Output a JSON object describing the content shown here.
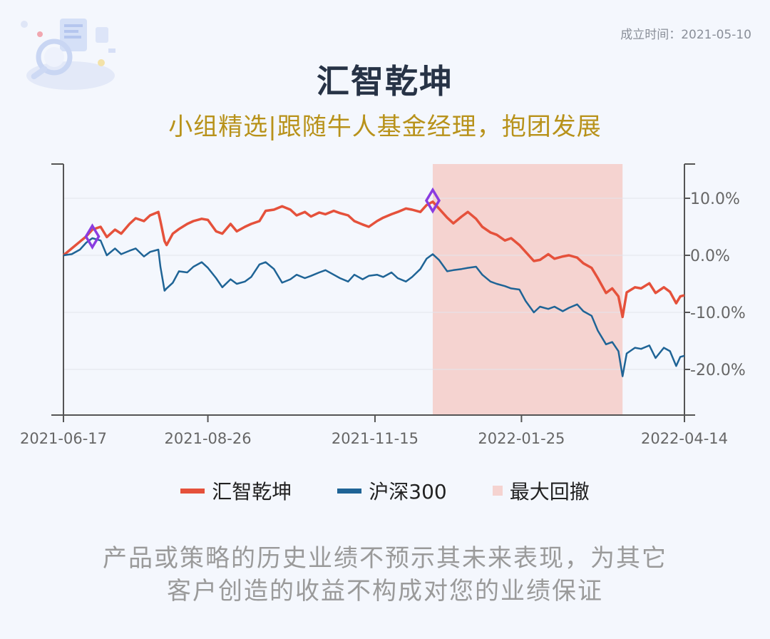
{
  "header": {
    "founded": "成立时间：2021-05-10",
    "title": "汇智乾坤",
    "subtitle": "小组精选|跟随牛人基金经理，抱团发展"
  },
  "colors": {
    "fund": "#e5513b",
    "index": "#1f6496",
    "drawdown": "#f5d3d0",
    "marker": "#8a3ce0",
    "axis": "#555555"
  },
  "chart_data": {
    "type": "line",
    "x_ticks": [
      "2021-06-17",
      "2021-08-26",
      "2021-11-15",
      "2022-01-25",
      "2022-04-14"
    ],
    "y_right_ticks": [
      "10.0%",
      "0.0%",
      "-10.0%",
      "-20.0%"
    ],
    "ylim": [
      -28,
      16
    ],
    "x_start": "2021-06-17",
    "x_end": "2022-04-14",
    "grid": true,
    "legend_position": "bottom",
    "series": [
      {
        "name": "汇智乾坤",
        "color": "#e5513b",
        "points": [
          [
            "2021-06-17",
            0.0
          ],
          [
            "2021-06-21",
            1.2
          ],
          [
            "2021-06-25",
            2.4
          ],
          [
            "2021-06-28",
            3.3
          ],
          [
            "2021-07-01",
            4.5
          ],
          [
            "2021-07-05",
            5.0
          ],
          [
            "2021-07-08",
            3.2
          ],
          [
            "2021-07-12",
            4.5
          ],
          [
            "2021-07-15",
            3.8
          ],
          [
            "2021-07-19",
            5.5
          ],
          [
            "2021-07-22",
            6.5
          ],
          [
            "2021-07-26",
            6.0
          ],
          [
            "2021-07-29",
            7.0
          ],
          [
            "2021-08-02",
            7.6
          ],
          [
            "2021-08-03",
            6.0
          ],
          [
            "2021-08-05",
            2.5
          ],
          [
            "2021-08-06",
            1.8
          ],
          [
            "2021-08-09",
            3.8
          ],
          [
            "2021-08-12",
            4.6
          ],
          [
            "2021-08-16",
            5.5
          ],
          [
            "2021-08-19",
            6.0
          ],
          [
            "2021-08-23",
            6.4
          ],
          [
            "2021-08-26",
            6.2
          ],
          [
            "2021-08-30",
            4.2
          ],
          [
            "2021-09-02",
            3.8
          ],
          [
            "2021-09-06",
            5.5
          ],
          [
            "2021-09-09",
            4.2
          ],
          [
            "2021-09-13",
            5.0
          ],
          [
            "2021-09-16",
            5.5
          ],
          [
            "2021-09-20",
            6.0
          ],
          [
            "2021-09-23",
            7.8
          ],
          [
            "2021-09-27",
            8.0
          ],
          [
            "2021-10-01",
            8.6
          ],
          [
            "2021-10-05",
            8.0
          ],
          [
            "2021-10-08",
            7.0
          ],
          [
            "2021-10-12",
            7.6
          ],
          [
            "2021-10-15",
            6.8
          ],
          [
            "2021-10-19",
            7.5
          ],
          [
            "2021-10-22",
            7.2
          ],
          [
            "2021-10-26",
            7.8
          ],
          [
            "2021-10-29",
            7.4
          ],
          [
            "2021-11-02",
            7.0
          ],
          [
            "2021-11-05",
            6.0
          ],
          [
            "2021-11-09",
            5.4
          ],
          [
            "2021-11-12",
            5.0
          ],
          [
            "2021-11-16",
            6.0
          ],
          [
            "2021-11-19",
            6.6
          ],
          [
            "2021-11-23",
            7.2
          ],
          [
            "2021-11-26",
            7.6
          ],
          [
            "2021-11-30",
            8.2
          ],
          [
            "2021-12-03",
            8.0
          ],
          [
            "2021-12-07",
            7.6
          ],
          [
            "2021-12-10",
            8.8
          ],
          [
            "2021-12-13",
            9.4
          ],
          [
            "2021-12-16",
            8.2
          ],
          [
            "2021-12-20",
            6.6
          ],
          [
            "2021-12-23",
            5.6
          ],
          [
            "2021-12-27",
            6.8
          ],
          [
            "2021-12-30",
            7.6
          ],
          [
            "2022-01-03",
            6.4
          ],
          [
            "2022-01-06",
            5.0
          ],
          [
            "2022-01-10",
            4.0
          ],
          [
            "2022-01-13",
            3.6
          ],
          [
            "2022-01-17",
            2.6
          ],
          [
            "2022-01-20",
            3.0
          ],
          [
            "2022-01-24",
            1.8
          ],
          [
            "2022-01-27",
            0.6
          ],
          [
            "2022-01-31",
            -1.0
          ],
          [
            "2022-02-03",
            -0.8
          ],
          [
            "2022-02-07",
            0.2
          ],
          [
            "2022-02-10",
            -0.6
          ],
          [
            "2022-02-14",
            -0.2
          ],
          [
            "2022-02-17",
            0.0
          ],
          [
            "2022-02-21",
            -0.4
          ],
          [
            "2022-02-24",
            -1.4
          ],
          [
            "2022-02-28",
            -2.2
          ],
          [
            "2022-03-03",
            -4.0
          ],
          [
            "2022-03-07",
            -6.6
          ],
          [
            "2022-03-10",
            -5.8
          ],
          [
            "2022-03-13",
            -7.2
          ],
          [
            "2022-03-15",
            -10.8
          ],
          [
            "2022-03-17",
            -6.5
          ],
          [
            "2022-03-21",
            -5.6
          ],
          [
            "2022-03-24",
            -5.8
          ],
          [
            "2022-03-28",
            -4.9
          ],
          [
            "2022-03-31",
            -6.6
          ],
          [
            "2022-04-04",
            -5.6
          ],
          [
            "2022-04-07",
            -6.4
          ],
          [
            "2022-04-10",
            -8.4
          ],
          [
            "2022-04-12",
            -7.2
          ],
          [
            "2022-04-14",
            -7.0
          ]
        ]
      },
      {
        "name": "沪深300",
        "color": "#1f6496",
        "points": [
          [
            "2021-06-17",
            0.0
          ],
          [
            "2021-06-21",
            0.2
          ],
          [
            "2021-06-25",
            1.0
          ],
          [
            "2021-06-28",
            2.2
          ],
          [
            "2021-07-01",
            3.0
          ],
          [
            "2021-07-05",
            2.6
          ],
          [
            "2021-07-08",
            0.0
          ],
          [
            "2021-07-12",
            1.2
          ],
          [
            "2021-07-15",
            0.2
          ],
          [
            "2021-07-19",
            0.8
          ],
          [
            "2021-07-22",
            1.2
          ],
          [
            "2021-07-26",
            -0.2
          ],
          [
            "2021-07-29",
            0.6
          ],
          [
            "2021-08-02",
            1.0
          ],
          [
            "2021-08-03",
            -2.0
          ],
          [
            "2021-08-05",
            -6.2
          ],
          [
            "2021-08-06",
            -5.8
          ],
          [
            "2021-08-09",
            -4.8
          ],
          [
            "2021-08-12",
            -2.8
          ],
          [
            "2021-08-16",
            -3.0
          ],
          [
            "2021-08-19",
            -2.0
          ],
          [
            "2021-08-23",
            -1.2
          ],
          [
            "2021-08-26",
            -2.2
          ],
          [
            "2021-08-30",
            -4.0
          ],
          [
            "2021-09-02",
            -5.6
          ],
          [
            "2021-09-06",
            -4.2
          ],
          [
            "2021-09-09",
            -5.0
          ],
          [
            "2021-09-13",
            -4.6
          ],
          [
            "2021-09-16",
            -3.8
          ],
          [
            "2021-09-20",
            -1.6
          ],
          [
            "2021-09-23",
            -1.2
          ],
          [
            "2021-09-27",
            -2.4
          ],
          [
            "2021-10-01",
            -4.8
          ],
          [
            "2021-10-05",
            -4.2
          ],
          [
            "2021-10-08",
            -3.4
          ],
          [
            "2021-10-12",
            -4.0
          ],
          [
            "2021-10-15",
            -3.6
          ],
          [
            "2021-10-19",
            -3.0
          ],
          [
            "2021-10-22",
            -2.6
          ],
          [
            "2021-10-26",
            -3.4
          ],
          [
            "2021-10-29",
            -4.0
          ],
          [
            "2021-11-02",
            -4.6
          ],
          [
            "2021-11-05",
            -3.4
          ],
          [
            "2021-11-09",
            -4.2
          ],
          [
            "2021-11-12",
            -3.6
          ],
          [
            "2021-11-16",
            -3.4
          ],
          [
            "2021-11-19",
            -3.8
          ],
          [
            "2021-11-23",
            -3.0
          ],
          [
            "2021-11-26",
            -4.0
          ],
          [
            "2021-11-30",
            -4.6
          ],
          [
            "2021-12-03",
            -3.8
          ],
          [
            "2021-12-07",
            -2.4
          ],
          [
            "2021-12-10",
            -0.6
          ],
          [
            "2021-12-13",
            0.2
          ],
          [
            "2021-12-16",
            -0.8
          ],
          [
            "2021-12-20",
            -2.8
          ],
          [
            "2021-12-23",
            -2.6
          ],
          [
            "2021-12-27",
            -2.4
          ],
          [
            "2021-12-30",
            -2.2
          ],
          [
            "2022-01-03",
            -2.0
          ],
          [
            "2022-01-06",
            -3.4
          ],
          [
            "2022-01-10",
            -4.6
          ],
          [
            "2022-01-13",
            -5.0
          ],
          [
            "2022-01-17",
            -5.4
          ],
          [
            "2022-01-20",
            -5.8
          ],
          [
            "2022-01-24",
            -6.0
          ],
          [
            "2022-01-27",
            -8.0
          ],
          [
            "2022-01-31",
            -10.0
          ],
          [
            "2022-02-03",
            -9.0
          ],
          [
            "2022-02-07",
            -9.4
          ],
          [
            "2022-02-10",
            -9.0
          ],
          [
            "2022-02-14",
            -9.8
          ],
          [
            "2022-02-17",
            -9.2
          ],
          [
            "2022-02-21",
            -8.6
          ],
          [
            "2022-02-24",
            -9.8
          ],
          [
            "2022-02-28",
            -10.6
          ],
          [
            "2022-03-03",
            -13.2
          ],
          [
            "2022-03-07",
            -15.6
          ],
          [
            "2022-03-10",
            -15.2
          ],
          [
            "2022-03-13",
            -16.8
          ],
          [
            "2022-03-15",
            -21.2
          ],
          [
            "2022-03-17",
            -17.2
          ],
          [
            "2022-03-21",
            -16.2
          ],
          [
            "2022-03-24",
            -16.4
          ],
          [
            "2022-03-28",
            -15.8
          ],
          [
            "2022-03-31",
            -18.0
          ],
          [
            "2022-04-04",
            -16.2
          ],
          [
            "2022-04-07",
            -16.8
          ],
          [
            "2022-04-10",
            -19.4
          ],
          [
            "2022-04-12",
            -17.8
          ],
          [
            "2022-04-14",
            -17.6
          ]
        ]
      }
    ],
    "max_drawdown": {
      "name": "最大回撤",
      "start": "2021-12-13",
      "end": "2022-03-15",
      "color": "#f5d3d0"
    },
    "markers": [
      {
        "date": "2021-07-01",
        "value": 3.3
      },
      {
        "date": "2021-12-13",
        "value": 9.6
      }
    ]
  },
  "legend": [
    {
      "label": "汇智乾坤",
      "color": "#e5513b",
      "kind": "line"
    },
    {
      "label": "沪深300",
      "color": "#1f6496",
      "kind": "line"
    },
    {
      "label": "最大回撤",
      "color": "#f5d3d0",
      "kind": "box"
    }
  ],
  "disclaimer": {
    "line1": "产品或策略的历史业绩不预示其未来表现，为其它",
    "line2": "客户创造的收益不构成对您的业绩保证"
  }
}
